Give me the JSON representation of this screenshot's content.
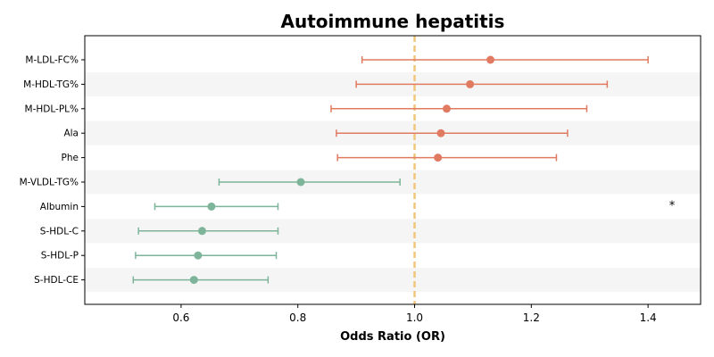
{
  "chart_data": {
    "type": "forest",
    "title": "Autoimmune hepatitis",
    "xlabel": "Odds Ratio (OR)",
    "xlim": [
      0.435,
      1.49
    ],
    "xticks": [
      0.6,
      0.8,
      1.0,
      1.2,
      1.4
    ],
    "xtick_labels": [
      "0.6",
      "0.8",
      "1.0",
      "1.2",
      "1.4"
    ],
    "reference_line": 1.0,
    "reference_color": "#f0c67a",
    "band_color": "#f5f5f5",
    "colors": {
      "increase": "#e07b61",
      "decrease": "#7eb59a"
    },
    "rows": [
      {
        "label": "M-LDL-FC%",
        "or": 1.13,
        "lower": 0.91,
        "upper": 1.4,
        "group": "increase",
        "annotation": ""
      },
      {
        "label": "M-HDL-TG%",
        "or": 1.095,
        "lower": 0.9,
        "upper": 1.33,
        "group": "increase",
        "annotation": ""
      },
      {
        "label": "M-HDL-PL%",
        "or": 1.055,
        "lower": 0.857,
        "upper": 1.295,
        "group": "increase",
        "annotation": ""
      },
      {
        "label": "Ala",
        "or": 1.045,
        "lower": 0.866,
        "upper": 1.262,
        "group": "increase",
        "annotation": ""
      },
      {
        "label": "Phe",
        "or": 1.04,
        "lower": 0.868,
        "upper": 1.243,
        "group": "increase",
        "annotation": ""
      },
      {
        "label": "M-VLDL-TG%",
        "or": 0.805,
        "lower": 0.665,
        "upper": 0.975,
        "group": "decrease",
        "annotation": ""
      },
      {
        "label": "Albumin",
        "or": 0.652,
        "lower": 0.555,
        "upper": 0.766,
        "group": "decrease",
        "annotation": "*"
      },
      {
        "label": "S-HDL-C",
        "or": 0.636,
        "lower": 0.527,
        "upper": 0.766,
        "group": "decrease",
        "annotation": ""
      },
      {
        "label": "S-HDL-P",
        "or": 0.629,
        "lower": 0.522,
        "upper": 0.763,
        "group": "decrease",
        "annotation": ""
      },
      {
        "label": "S-HDL-CE",
        "or": 0.622,
        "lower": 0.518,
        "upper": 0.749,
        "group": "decrease",
        "annotation": ""
      }
    ]
  }
}
